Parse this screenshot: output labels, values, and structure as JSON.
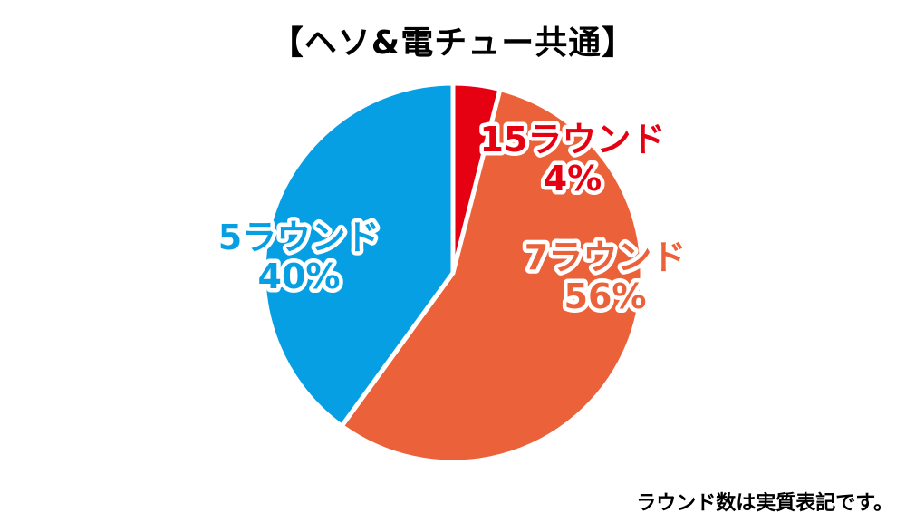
{
  "chart_data": {
    "type": "pie",
    "title": "【ヘソ&電チュー共通】",
    "slices": [
      {
        "name": "15ラウンド",
        "value": 4,
        "value_label": "4%",
        "color": "#e50012"
      },
      {
        "name": "7ラウンド",
        "value": 56,
        "value_label": "56%",
        "color": "#eb6139"
      },
      {
        "name": "5ラウンド",
        "value": 40,
        "value_label": "40%",
        "color": "#069fe3"
      }
    ],
    "start": "12 o'clock",
    "direction": "clockwise"
  },
  "footnote": "ラウンド数は実質表記です。"
}
